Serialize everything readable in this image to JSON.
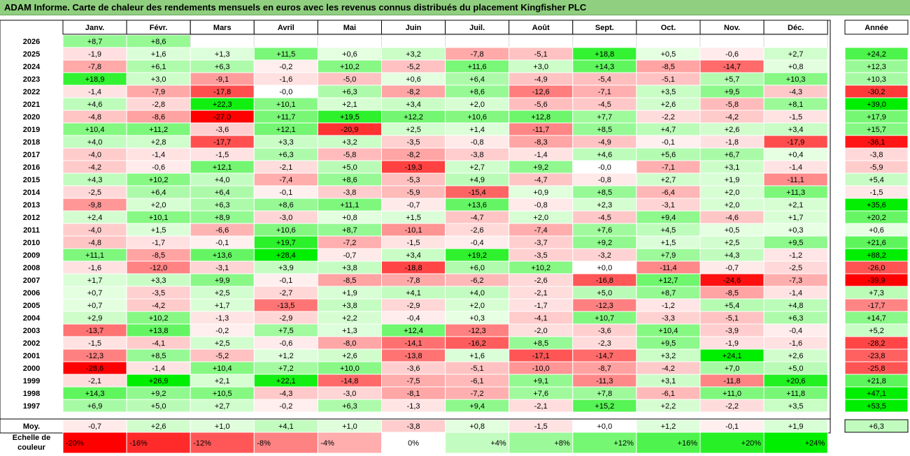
{
  "title": "ADAM Informe. Carte de chaleur des rendements mensuels en euros avec les revenus connus distribués du placement Kingfisher PLC",
  "chart_data": {
    "type": "heatmap",
    "title": "ADAM Informe. Carte de chaleur des rendements mensuels en euros avec les revenus connus distribués du placement Kingfisher PLC",
    "columns": [
      "Janv.",
      "Févr.",
      "Mars",
      "Avril",
      "Mai",
      "Juin",
      "Juil.",
      "Août",
      "Sept.",
      "Oct.",
      "Nov.",
      "Déc."
    ],
    "year_column": "Année",
    "avg_label": "Moy.",
    "rows": [
      {
        "year": "2026",
        "values": [
          "+8,7",
          "+8,6",
          "",
          "",
          "",
          "",
          "",
          "",
          "",
          "",
          "",
          ""
        ],
        "total": ""
      },
      {
        "year": "2025",
        "values": [
          "-1,9",
          "+1,6",
          "+1,3",
          "+11,5",
          "+0,6",
          "+3,2",
          "-7,8",
          "-5,1",
          "+18,8",
          "+0,5",
          "-0,6",
          "+2,7"
        ],
        "total": "+24,2"
      },
      {
        "year": "2024",
        "values": [
          "-7,8",
          "+6,1",
          "+6,3",
          "-0,2",
          "+10,2",
          "-5,2",
          "+11,6",
          "+3,0",
          "+14,3",
          "-8,5",
          "-14,7",
          "+0,8"
        ],
        "total": "+12,3"
      },
      {
        "year": "2023",
        "values": [
          "+18,9",
          "+3,0",
          "-9,1",
          "-1,6",
          "-5,0",
          "+0,6",
          "+6,4",
          "-4,9",
          "-5,4",
          "-5,1",
          "+5,7",
          "+10,3"
        ],
        "total": "+10,3"
      },
      {
        "year": "2022",
        "values": [
          "-1,4",
          "-7,9",
          "-17,8",
          "-0,0",
          "+6,3",
          "-8,2",
          "+8,6",
          "-12,6",
          "-7,1",
          "+3,5",
          "+9,5",
          "-4,3"
        ],
        "total": "-30,2"
      },
      {
        "year": "2021",
        "values": [
          "+4,6",
          "-2,8",
          "+22,3",
          "+10,1",
          "+2,1",
          "+3,4",
          "+2,0",
          "-5,6",
          "-4,5",
          "+2,6",
          "-5,8",
          "+8,1"
        ],
        "total": "+39,0"
      },
      {
        "year": "2020",
        "values": [
          "-4,8",
          "-8,6",
          "-27,0",
          "+11,7",
          "+19,5",
          "+12,2",
          "+10,6",
          "+12,8",
          "+7,7",
          "-2,2",
          "-4,2",
          "-1,5"
        ],
        "total": "+17,9"
      },
      {
        "year": "2019",
        "values": [
          "+10,4",
          "+11,2",
          "-3,6",
          "+12,1",
          "-20,9",
          "+2,5",
          "+1,4",
          "-11,7",
          "+8,5",
          "+4,7",
          "+2,6",
          "+3,4"
        ],
        "total": "+15,7"
      },
      {
        "year": "2018",
        "values": [
          "+4,0",
          "+2,8",
          "-17,7",
          "+3,3",
          "+3,2",
          "-3,5",
          "-0,8",
          "-8,3",
          "-4,9",
          "-0,1",
          "-1,8",
          "-17,9"
        ],
        "total": "-36,1"
      },
      {
        "year": "2017",
        "values": [
          "-4,0",
          "-1,4",
          "-1,5",
          "+6,3",
          "-5,8",
          "-8,2",
          "-3,8",
          "-1,4",
          "+4,6",
          "+5,6",
          "+6,7",
          "+0,4"
        ],
        "total": "-3,8"
      },
      {
        "year": "2016",
        "values": [
          "-4,2",
          "-0,6",
          "+12,1",
          "-2,1",
          "+5,0",
          "-19,3",
          "+2,7",
          "+9,2",
          "-0,0",
          "-7,1",
          "+3,1",
          "-1,4"
        ],
        "total": "-5,9"
      },
      {
        "year": "2015",
        "values": [
          "+4,3",
          "+10,2",
          "+4,0",
          "-7,4",
          "+8,6",
          "-5,3",
          "+4,9",
          "-4,7",
          "-0,8",
          "+2,7",
          "+1,9",
          "-11,1"
        ],
        "total": "+5,4"
      },
      {
        "year": "2014",
        "values": [
          "-2,5",
          "+6,4",
          "+6,4",
          "-0,1",
          "-3,8",
          "-5,9",
          "-15,4",
          "+0,9",
          "+8,5",
          "-6,4",
          "+2,0",
          "+11,3"
        ],
        "total": "-1,5"
      },
      {
        "year": "2013",
        "values": [
          "-9,8",
          "+2,0",
          "+6,3",
          "+8,6",
          "+11,1",
          "-0,7",
          "+13,6",
          "-0,8",
          "+2,3",
          "-3,1",
          "+2,0",
          "+2,1"
        ],
        "total": "+35,6"
      },
      {
        "year": "2012",
        "values": [
          "+2,4",
          "+10,1",
          "+8,9",
          "-3,0",
          "+0,8",
          "+1,5",
          "-4,7",
          "+2,0",
          "-4,5",
          "+9,4",
          "-4,6",
          "+1,7"
        ],
        "total": "+20,2"
      },
      {
        "year": "2011",
        "values": [
          "-4,0",
          "+1,5",
          "-6,6",
          "+10,6",
          "+8,7",
          "-10,1",
          "-2,6",
          "-7,4",
          "+7,6",
          "+4,5",
          "+0,5",
          "+0,3"
        ],
        "total": "+0,6"
      },
      {
        "year": "2010",
        "values": [
          "-4,8",
          "-1,7",
          "-0,1",
          "+19,7",
          "-7,2",
          "-1,5",
          "-0,4",
          "-3,7",
          "+9,2",
          "+1,5",
          "+2,5",
          "+9,5"
        ],
        "total": "+21,6"
      },
      {
        "year": "2009",
        "values": [
          "+11,1",
          "-8,5",
          "+13,6",
          "+28,4",
          "-0,7",
          "+3,4",
          "+19,2",
          "-3,5",
          "-3,2",
          "+7,9",
          "+4,3",
          "-1,2"
        ],
        "total": "+88,2"
      },
      {
        "year": "2008",
        "values": [
          "-1,6",
          "-12,0",
          "-3,1",
          "+3,9",
          "+3,8",
          "-18,8",
          "+6,0",
          "+10,2",
          "+0,0",
          "-11,4",
          "-0,7",
          "-2,5"
        ],
        "total": "-26,0"
      },
      {
        "year": "2007",
        "values": [
          "+1,7",
          "+3,3",
          "+9,9",
          "-0,1",
          "-8,5",
          "-7,8",
          "-6,2",
          "-2,6",
          "-16,8",
          "+12,7",
          "-24,6",
          "-7,3"
        ],
        "total": "-39,9"
      },
      {
        "year": "2006",
        "values": [
          "+0,7",
          "-3,5",
          "+2,5",
          "-2,7",
          "+1,9",
          "+4,1",
          "+4,0",
          "-2,1",
          "+5,0",
          "+8,7",
          "-8,5",
          "-1,4"
        ],
        "total": "+7,3"
      },
      {
        "year": "2005",
        "values": [
          "+0,7",
          "-4,2",
          "+1,7",
          "-13,5",
          "+3,8",
          "-2,9",
          "+2,0",
          "-1,7",
          "-12,3",
          "-1,2",
          "+5,4",
          "+4,8"
        ],
        "total": "-17,7"
      },
      {
        "year": "2004",
        "values": [
          "+2,9",
          "+10,2",
          "-1,3",
          "-2,9",
          "+2,2",
          "-0,4",
          "+0,3",
          "-4,1",
          "+10,7",
          "-3,3",
          "-5,1",
          "+6,3"
        ],
        "total": "+14,7"
      },
      {
        "year": "2003",
        "values": [
          "-13,7",
          "+13,8",
          "-0,2",
          "+7,5",
          "+1,3",
          "+12,4",
          "-12,3",
          "-2,0",
          "-3,6",
          "+10,4",
          "-3,9",
          "-0,4"
        ],
        "total": "+5,2"
      },
      {
        "year": "2002",
        "values": [
          "-1,5",
          "-4,1",
          "+2,5",
          "-0,6",
          "-8,0",
          "-14,1",
          "-16,2",
          "+8,5",
          "-2,3",
          "+9,5",
          "-1,9",
          "-1,6"
        ],
        "total": "-28,2"
      },
      {
        "year": "2001",
        "values": [
          "-12,3",
          "+8,5",
          "-5,2",
          "+1,2",
          "+2,6",
          "-13,8",
          "+1,6",
          "-17,1",
          "-14,7",
          "+3,2",
          "+24,1",
          "+2,6"
        ],
        "total": "-23,8"
      },
      {
        "year": "2000",
        "values": [
          "-28,6",
          "-1,4",
          "+10,4",
          "+7,2",
          "+10,0",
          "-3,6",
          "-5,1",
          "-10,0",
          "-8,7",
          "-4,2",
          "+7,0",
          "+5,0"
        ],
        "total": "-25,8"
      },
      {
        "year": "1999",
        "values": [
          "-2,1",
          "+26,9",
          "+2,1",
          "+22,1",
          "-14,8",
          "-7,5",
          "-6,1",
          "+9,1",
          "-11,3",
          "+3,1",
          "-11,8",
          "+20,6"
        ],
        "total": "+21,8"
      },
      {
        "year": "1998",
        "values": [
          "+14,3",
          "+9,2",
          "+10,5",
          "-4,3",
          "-3,0",
          "-8,1",
          "-7,2",
          "+7,6",
          "+7,8",
          "-6,1",
          "+11,0",
          "+11,8"
        ],
        "total": "+47,1"
      },
      {
        "year": "1997",
        "values": [
          "+6,9",
          "+5,0",
          "+2,7",
          "-0,2",
          "+6,3",
          "-1,3",
          "+9,4",
          "-2,1",
          "+15,2",
          "+2,2",
          "-2,2",
          "+3,5"
        ],
        "total": "+53,5"
      }
    ],
    "averages": [
      "-0,7",
      "+2,6",
      "+1,0",
      "+4,1",
      "+1,0",
      "-3,8",
      "+0,8",
      "-1,5",
      "+0,0",
      "+1,2",
      "-0,1",
      "+1,9"
    ],
    "avg_total": "+6,3",
    "scale_label_line1": "Echelle de",
    "scale_label_line2": "couleur",
    "scale": [
      {
        "value": -20,
        "label": "-20%"
      },
      {
        "value": -16,
        "label": "-16%"
      },
      {
        "value": -12,
        "label": "-12%"
      },
      {
        "value": -8,
        "label": "-8%"
      },
      {
        "value": -4,
        "label": "-4%"
      },
      {
        "value": 0,
        "label": "0%"
      },
      {
        "value": 4,
        "label": "+4%"
      },
      {
        "value": 8,
        "label": "+8%"
      },
      {
        "value": 12,
        "label": "+12%"
      },
      {
        "value": 16,
        "label": "+16%"
      },
      {
        "value": 20,
        "label": "+20%"
      },
      {
        "value": 24,
        "label": "+24%"
      }
    ],
    "colors": {
      "negative_max": "#ff0000",
      "positive_max": "#00ee00",
      "neutral": "#ffffff",
      "title_bar": "#8fcf7f"
    }
  }
}
